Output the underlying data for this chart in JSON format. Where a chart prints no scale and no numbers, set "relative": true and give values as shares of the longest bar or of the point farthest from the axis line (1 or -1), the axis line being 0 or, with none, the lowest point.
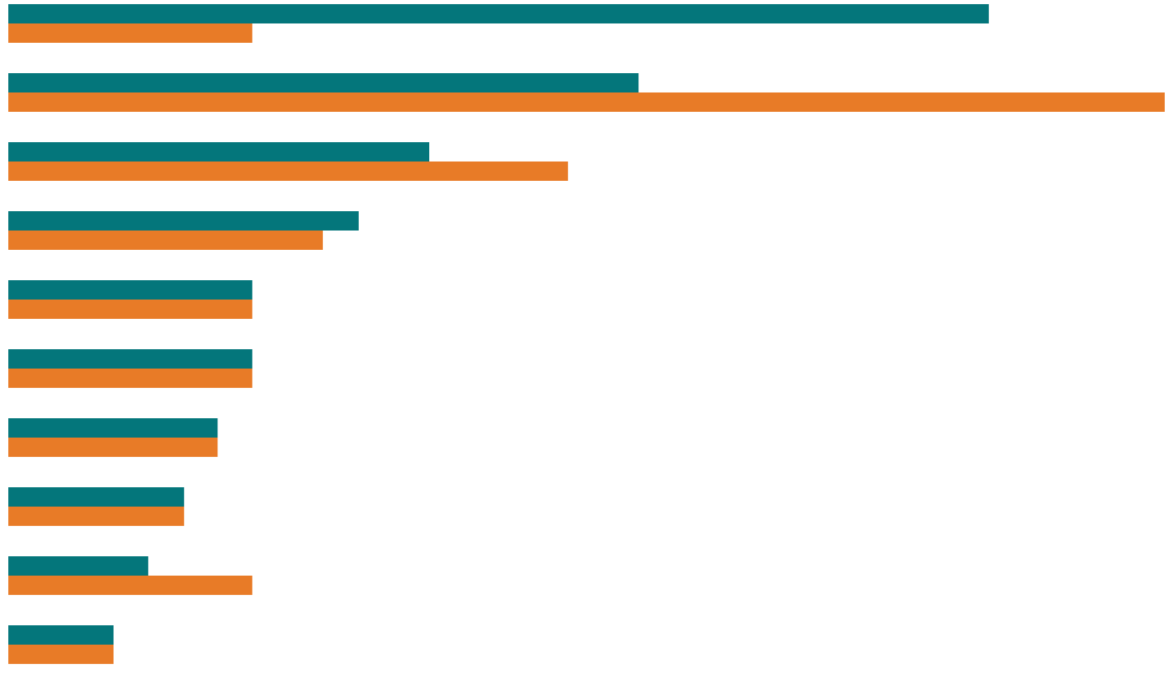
{
  "chart_data": {
    "type": "bar",
    "orientation": "horizontal",
    "relative": true,
    "categories": [
      null,
      null,
      null,
      null,
      null,
      null,
      null,
      null,
      null,
      null
    ],
    "series": [
      {
        "color": "#04767b",
        "values": [
          0.848,
          0.545,
          0.364,
          0.303,
          0.211,
          0.211,
          0.181,
          0.152,
          0.121,
          0.091
        ]
      },
      {
        "color": "#e87b27",
        "values": [
          0.211,
          1.0,
          0.484,
          0.272,
          0.211,
          0.211,
          0.181,
          0.152,
          0.211,
          0.091
        ]
      }
    ]
  }
}
